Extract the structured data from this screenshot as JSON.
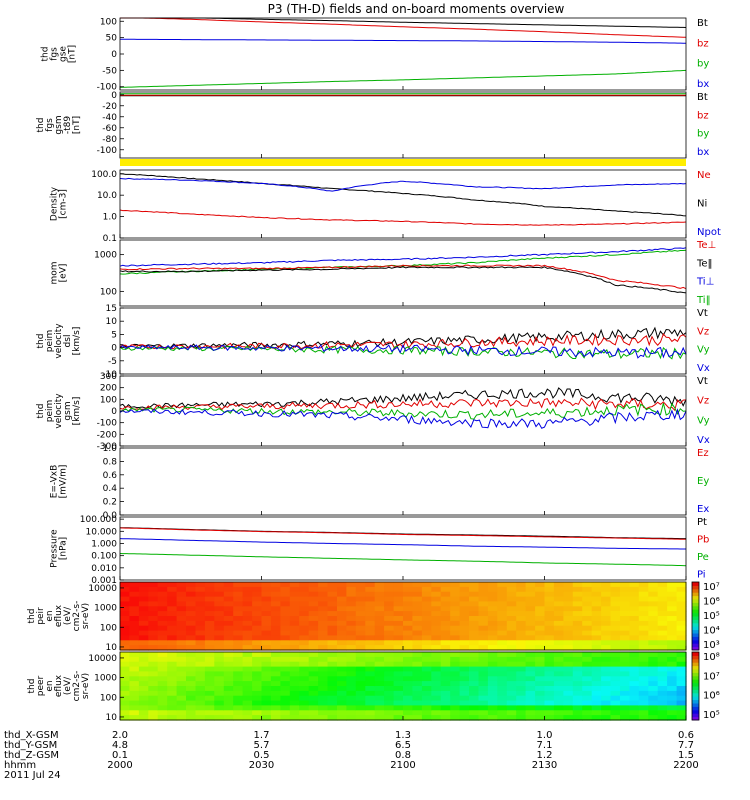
{
  "chart_data": {
    "type": "line",
    "title": "P3 (TH-D) fields and on-board moments overview",
    "x": {
      "ticks": [
        "2000",
        "2030",
        "2100",
        "2130",
        "2200"
      ],
      "range_min": [
        0,
        120
      ]
    },
    "panels": [
      {
        "id": "fgs-gse",
        "ylabel": [
          "thd",
          "fgs",
          "gse",
          "[nT]"
        ],
        "yrange": [
          -110,
          110
        ],
        "ticks": [
          "100",
          "50",
          "0",
          "-50",
          "-100"
        ],
        "tickvals": [
          100,
          50,
          0,
          -50,
          -100
        ],
        "legend": [
          {
            "name": "Bt",
            "color": "#000000"
          },
          {
            "name": "bz",
            "color": "#e00000"
          },
          {
            "name": "by",
            "color": "#00b000"
          },
          {
            "name": "bx",
            "color": "#0000e0"
          }
        ],
        "series": [
          {
            "name": "Bt",
            "color": "#000000",
            "values": [
              115,
              111,
              106,
              102,
              97,
              93,
              89,
              85,
              81
            ]
          },
          {
            "name": "bz",
            "color": "#e00000",
            "values": [
              112,
              106,
              98,
              91,
              83,
              76,
              68,
              59,
              51
            ]
          },
          {
            "name": "bx",
            "color": "#0000e0",
            "values": [
              45,
              44,
              43,
              42,
              41,
              40,
              38,
              36,
              33
            ]
          },
          {
            "name": "by",
            "color": "#00b000",
            "values": [
              -102,
              -96,
              -90,
              -84,
              -79,
              -73,
              -67,
              -61,
              -50
            ]
          }
        ]
      },
      {
        "id": "fgs-gsm",
        "ylabel": [
          "thd",
          "fgs",
          "gsm",
          "-t89",
          "[nT]"
        ],
        "yrange": [
          -115,
          5
        ],
        "ticks": [
          "0",
          "-20",
          "-40",
          "-60",
          "-80",
          "-100"
        ],
        "tickvals": [
          0,
          -20,
          -40,
          -60,
          -80,
          -100
        ],
        "legend": [
          {
            "name": "Bt",
            "color": "#000000"
          },
          {
            "name": "bz",
            "color": "#e00000"
          },
          {
            "name": "by",
            "color": "#00b000"
          },
          {
            "name": "bx",
            "color": "#0000e0"
          }
        ],
        "series": [
          {
            "name": "Bt",
            "color": "#000000",
            "values": [
              -2,
              -2,
              -2,
              -2,
              -2,
              -2,
              -2,
              -2,
              -2
            ]
          },
          {
            "name": "by",
            "color": "#00b000",
            "values": [
              2,
              2,
              2,
              2,
              2,
              2,
              2,
              2,
              2
            ]
          },
          {
            "name": "bz",
            "color": "#e00000",
            "values": [
              -1,
              -1,
              -1,
              -1,
              -1,
              -1,
              -1,
              -1,
              -1
            ]
          }
        ]
      },
      {
        "id": "density",
        "ylabel": [
          "Density",
          "[cm-3]"
        ],
        "ylog": true,
        "yrange": [
          0.1,
          150
        ],
        "ticks": [
          "100.0",
          "10.0",
          "1.0",
          "0.1"
        ],
        "tickvals": [
          100,
          10,
          1,
          0.1
        ],
        "legend": [
          {
            "name": "Ne",
            "color": "#e00000"
          },
          {
            "name": "Ni",
            "color": "#000000"
          },
          {
            "name": "Npot",
            "color": "#0000e0"
          }
        ],
        "series": [
          {
            "name": "Ni",
            "color": "#000000",
            "values": [
              100,
              60,
              35,
              20,
              12,
              6,
              3,
              1.8,
              1.1
            ]
          },
          {
            "name": "Npot",
            "color": "#0000e0",
            "values": [
              60,
              50,
              35,
              15,
              45,
              25,
              20,
              30,
              35
            ]
          },
          {
            "name": "Ne",
            "color": "#e00000",
            "values": [
              2,
              1.3,
              0.9,
              0.7,
              0.6,
              0.45,
              0.4,
              0.45,
              0.55
            ]
          }
        ]
      },
      {
        "id": "temp",
        "ylabel": [
          "mom",
          "[eV]"
        ],
        "ylog": true,
        "yrange": [
          40,
          2500
        ],
        "ticks": [
          "1000",
          "100"
        ],
        "tickvals": [
          1000,
          100
        ],
        "legend": [
          {
            "name": "Te⊥",
            "color": "#e00000"
          },
          {
            "name": "Te‖",
            "color": "#000000"
          },
          {
            "name": "Ti⊥",
            "color": "#0000e0"
          },
          {
            "name": "Ti‖",
            "color": "#00b000"
          }
        ],
        "series": [
          {
            "name": "Ti⊥",
            "color": "#0000e0",
            "values": [
              500,
              550,
              600,
              700,
              750,
              850,
              1000,
              1200,
              1500
            ]
          },
          {
            "name": "Ti‖",
            "color": "#00b000",
            "values": [
              300,
              350,
              400,
              450,
              500,
              600,
              800,
              1000,
              1300
            ]
          },
          {
            "name": "Te⊥",
            "color": "#e00000",
            "values": [
              400,
              420,
              420,
              450,
              500,
              500,
              500,
              200,
              120
            ]
          },
          {
            "name": "Te‖",
            "color": "#000000",
            "values": [
              350,
              350,
              380,
              400,
              450,
              450,
              450,
              150,
              90
            ]
          }
        ]
      },
      {
        "id": "peim-dsl",
        "ylabel": [
          "thd",
          "peim",
          "velocity",
          "dsl",
          "[km/s]"
        ],
        "yrange": [
          -10,
          15
        ],
        "ticks": [
          "15",
          "10",
          "5",
          "0",
          "-5",
          "-10"
        ],
        "tickvals": [
          15,
          10,
          5,
          0,
          -5,
          -10
        ],
        "legend": [
          {
            "name": "Vt",
            "color": "#000000"
          },
          {
            "name": "Vz",
            "color": "#e00000"
          },
          {
            "name": "Vy",
            "color": "#00b000"
          },
          {
            "name": "Vx",
            "color": "#0000e0"
          }
        ],
        "series": [
          {
            "name": "Vt",
            "color": "#000000",
            "values": [
              0.5,
              0.8,
              1,
              1.5,
              2,
              3,
              4,
              5,
              6
            ]
          },
          {
            "name": "Vz",
            "color": "#e00000",
            "values": [
              0.3,
              0.5,
              0.6,
              1,
              1.2,
              2,
              2.5,
              3,
              3
            ]
          },
          {
            "name": "Vy",
            "color": "#00b000",
            "values": [
              -0.2,
              -0.3,
              -0.5,
              -0.8,
              -1,
              -1.5,
              -2,
              -2.5,
              -2
            ]
          },
          {
            "name": "Vx",
            "color": "#0000e0",
            "values": [
              0,
              0,
              -0.2,
              -0.3,
              -0.5,
              -1,
              -1.5,
              -2,
              -2
            ]
          }
        ]
      },
      {
        "id": "peim-gsm",
        "ylabel": [
          "thd",
          "peim",
          "velocity",
          "gsm",
          "[km/s]"
        ],
        "yrange": [
          -300,
          300
        ],
        "ticks": [
          "300",
          "200",
          "100",
          "0",
          "-100",
          "-200",
          "-300"
        ],
        "tickvals": [
          300,
          200,
          100,
          0,
          -100,
          -200,
          -300
        ],
        "legend": [
          {
            "name": "Vt",
            "color": "#000000"
          },
          {
            "name": "Vz",
            "color": "#e00000"
          },
          {
            "name": "Vy",
            "color": "#00b000"
          },
          {
            "name": "Vx",
            "color": "#0000e0"
          }
        ],
        "series": [
          {
            "name": "Vt",
            "color": "#000000",
            "values": [
              40,
              50,
              60,
              80,
              110,
              140,
              160,
              120,
              90
            ]
          },
          {
            "name": "Vz",
            "color": "#e00000",
            "values": [
              30,
              35,
              40,
              50,
              60,
              70,
              70,
              60,
              50
            ]
          },
          {
            "name": "Vy",
            "color": "#00b000",
            "values": [
              10,
              10,
              0,
              -10,
              -20,
              -30,
              -20,
              10,
              20
            ]
          },
          {
            "name": "Vx",
            "color": "#0000e0",
            "values": [
              0,
              -10,
              -20,
              -40,
              -70,
              -100,
              -110,
              -60,
              -20
            ]
          }
        ]
      },
      {
        "id": "efield",
        "ylabel": [
          "E=-VxB",
          "[mV/m]"
        ],
        "yrange": [
          0,
          1
        ],
        "ticks": [
          "1.0",
          "0.8",
          "0.6",
          "0.4",
          "0.2",
          "0.0"
        ],
        "tickvals": [
          1,
          0.8,
          0.6,
          0.4,
          0.2,
          0
        ],
        "legend": [
          {
            "name": "Ez",
            "color": "#e00000"
          },
          {
            "name": "Ey",
            "color": "#00b000"
          },
          {
            "name": "Ex",
            "color": "#0000e0"
          }
        ],
        "series": []
      },
      {
        "id": "pressure",
        "ylabel": [
          "Pressure",
          "[nPa]"
        ],
        "ylog": true,
        "yrange": [
          0.001,
          150
        ],
        "ticks": [
          "100.000",
          "10.000",
          "1.000",
          "0.100",
          "0.010",
          "0.001"
        ],
        "tickvals": [
          100,
          10,
          1,
          0.1,
          0.01,
          0.001
        ],
        "legend": [
          {
            "name": "Pt",
            "color": "#000000"
          },
          {
            "name": "Pb",
            "color": "#e00000"
          },
          {
            "name": "Pe",
            "color": "#00b000"
          },
          {
            "name": "Pi",
            "color": "#0000e0"
          }
        ],
        "series": [
          {
            "name": "Pt",
            "color": "#000000",
            "values": [
              20,
              14,
              10,
              8,
              6,
              5,
              4,
              3,
              2.5
            ]
          },
          {
            "name": "Pb",
            "color": "#e00000",
            "values": [
              19,
              13,
              9.5,
              7.5,
              5.5,
              4.5,
              3.5,
              2.8,
              2.2
            ]
          },
          {
            "name": "Pi",
            "color": "#0000e0",
            "values": [
              2.5,
              1.8,
              1.3,
              1,
              0.8,
              0.6,
              0.5,
              0.4,
              0.35
            ]
          },
          {
            "name": "Pe",
            "color": "#00b000",
            "values": [
              0.15,
              0.11,
              0.08,
              0.06,
              0.045,
              0.035,
              0.025,
              0.02,
              0.015
            ]
          }
        ]
      },
      {
        "id": "peir",
        "type": "heatmap",
        "ylabel": [
          "thd",
          "peir",
          "en",
          "eflux",
          "(eV/",
          "cm2-s-",
          "sr-eV)"
        ],
        "ylog": true,
        "ticks": [
          "10000",
          "1000",
          "100",
          "10"
        ],
        "tickvals": [
          10000,
          1000,
          100,
          10
        ],
        "colorbar": {
          "ticks": [
            "10⁷",
            "10⁶",
            "10⁵",
            "10⁴",
            "10³"
          ]
        }
      },
      {
        "id": "peer",
        "type": "heatmap",
        "ylabel": [
          "thd",
          "peer",
          "en",
          "eflux",
          "(eV/",
          "cm2-s-",
          "sr-eV)"
        ],
        "ylog": true,
        "ticks": [
          "10000",
          "1000",
          "100",
          "10"
        ],
        "tickvals": [
          10000,
          1000,
          100,
          10
        ],
        "colorbar": {
          "ticks": [
            "10⁸",
            "10⁷",
            "10⁶",
            "10⁵"
          ]
        }
      }
    ],
    "orbit_rows": [
      {
        "label": "thd_X-GSM",
        "values": [
          "2.0",
          "1.7",
          "1.3",
          "1.0",
          "0.6"
        ]
      },
      {
        "label": "thd_Y-GSM",
        "values": [
          "4.8",
          "5.7",
          "6.5",
          "7.1",
          "7.7"
        ]
      },
      {
        "label": "thd_Z-GSM",
        "values": [
          "0.1",
          "0.5",
          "0.8",
          "1.2",
          "1.5"
        ]
      },
      {
        "label": "hhmm",
        "values": [
          "2000",
          "2030",
          "2100",
          "2130",
          "2200"
        ]
      }
    ],
    "date": "2011 Jul 24"
  }
}
